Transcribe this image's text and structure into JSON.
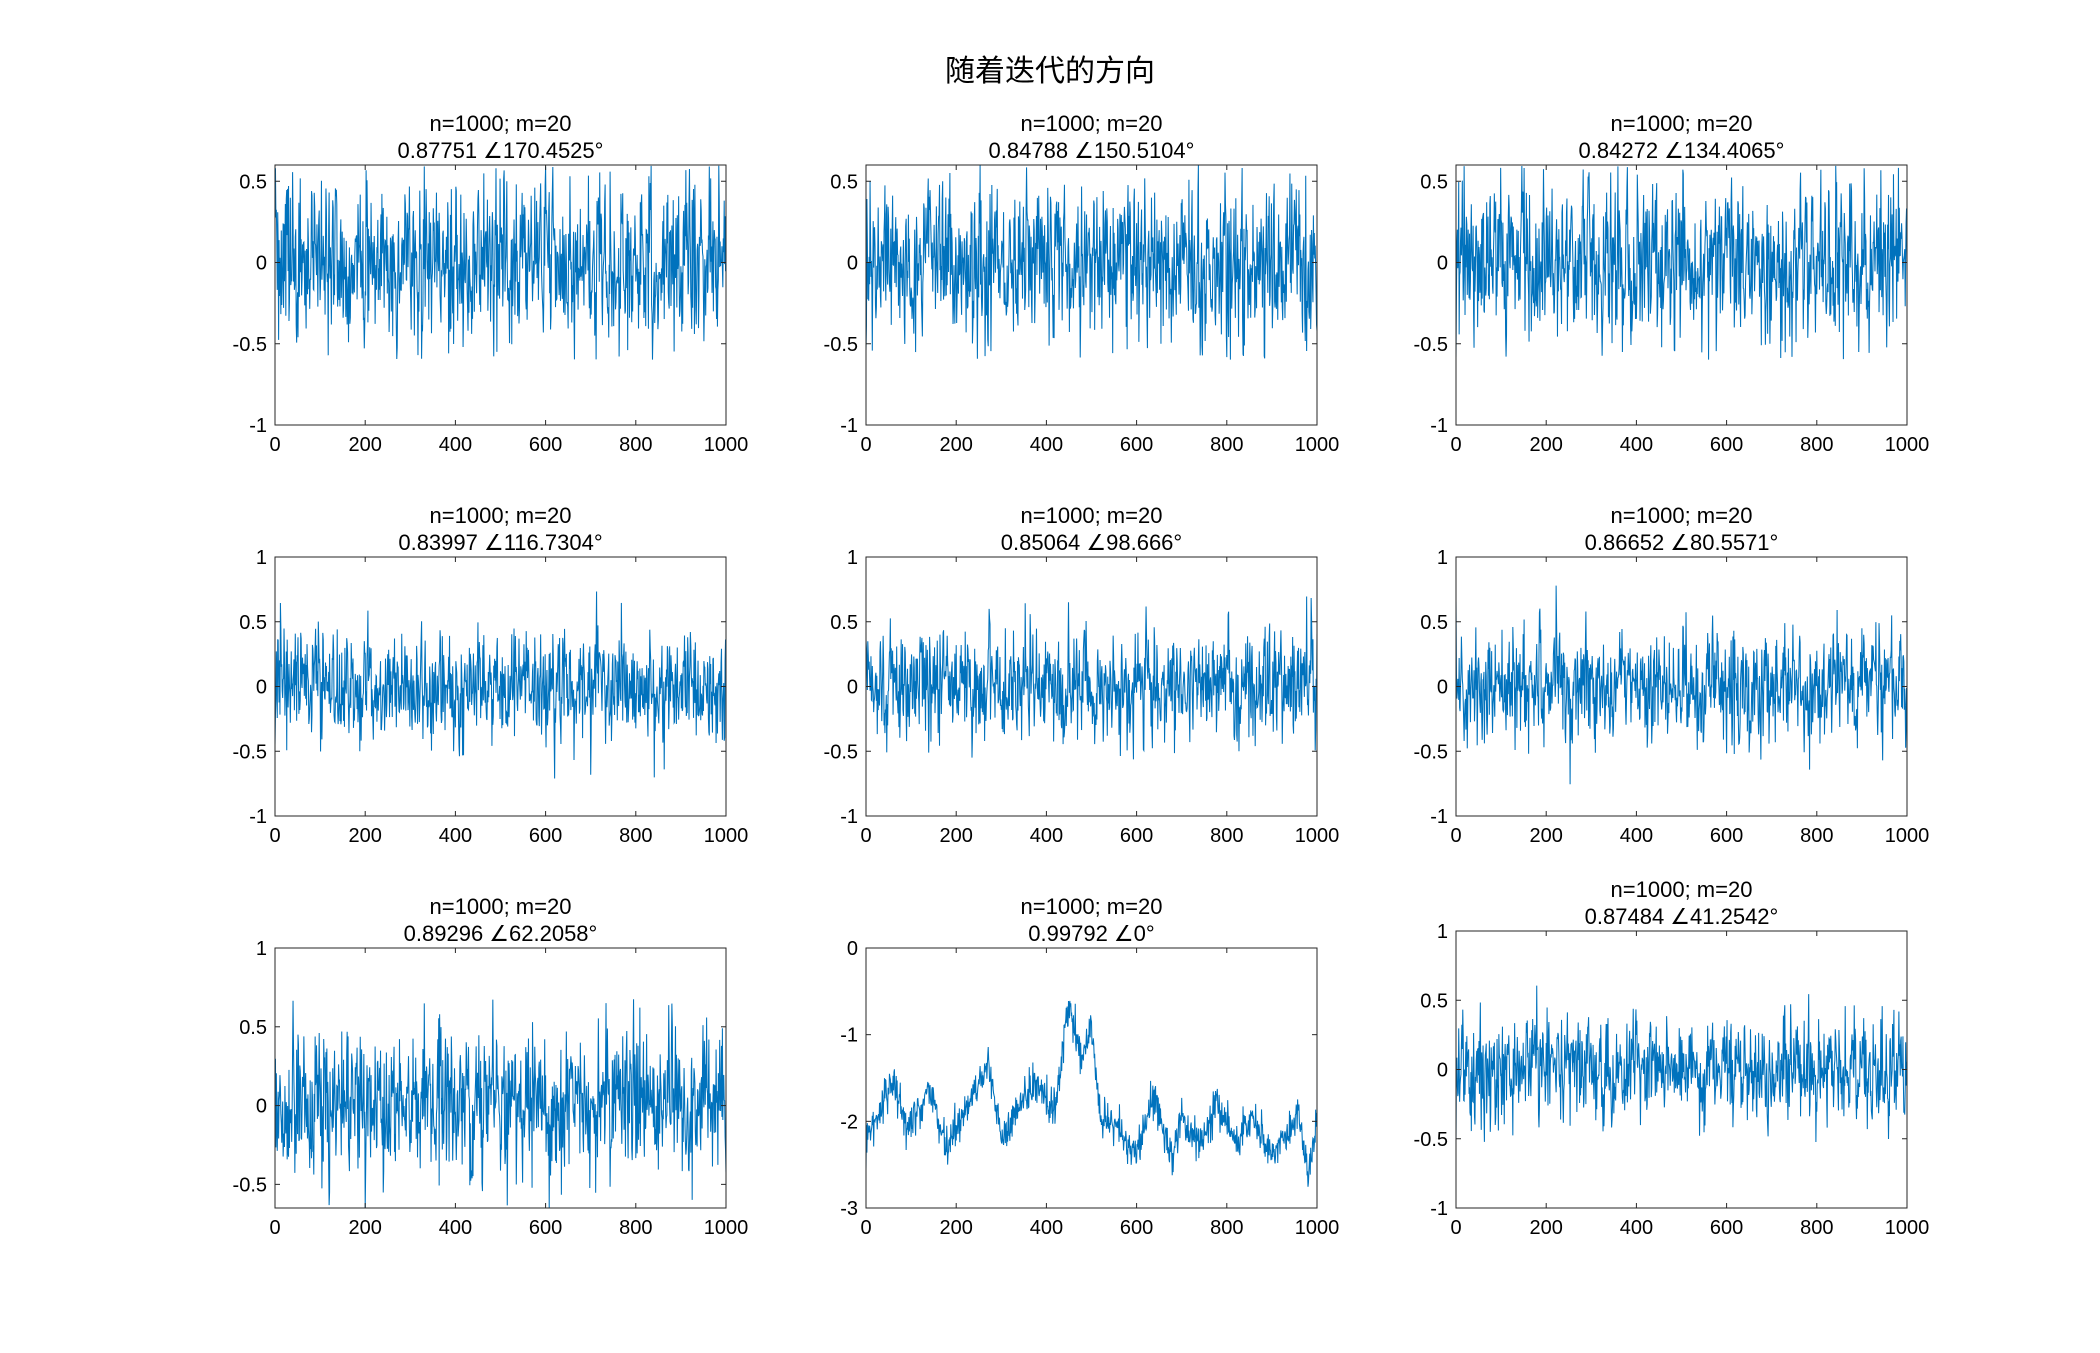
{
  "figure": {
    "suptitle": "随着迭代的方向",
    "line_color": "#0072BD"
  },
  "chart_data": [
    {
      "type": "line",
      "title_line1": "n=1000; m=20",
      "title_line2": "0.87751 ∠170.4525°",
      "xlim": [
        0,
        1000
      ],
      "ylim": [
        -1,
        0.6
      ],
      "xticks": [
        0,
        200,
        400,
        600,
        800,
        1000
      ],
      "yticks": [
        -1,
        -0.5,
        0,
        0.5
      ],
      "grid": false,
      "series_style": "noise",
      "noise_params": {
        "seed": 11,
        "amp": 0.6,
        "clip": 0.6,
        "mean": 0.0
      }
    },
    {
      "type": "line",
      "title_line1": "n=1000; m=20",
      "title_line2": "0.84788 ∠150.5104°",
      "xlim": [
        0,
        1000
      ],
      "ylim": [
        -1,
        0.6
      ],
      "xticks": [
        0,
        200,
        400,
        600,
        800,
        1000
      ],
      "yticks": [
        -1,
        -0.5,
        0,
        0.5
      ],
      "grid": false,
      "series_style": "noise",
      "noise_params": {
        "seed": 23,
        "amp": 0.55,
        "clip": 0.6,
        "mean": 0.0
      }
    },
    {
      "type": "line",
      "title_line1": "n=1000; m=20",
      "title_line2": "0.84272 ∠134.4065°",
      "xlim": [
        0,
        1000
      ],
      "ylim": [
        -1,
        0.6
      ],
      "xticks": [
        0,
        200,
        400,
        600,
        800,
        1000
      ],
      "yticks": [
        -1,
        -0.5,
        0,
        0.5
      ],
      "grid": false,
      "series_style": "noise",
      "noise_params": {
        "seed": 37,
        "amp": 0.55,
        "clip": 0.6,
        "mean": 0.0
      }
    },
    {
      "type": "line",
      "title_line1": "n=1000; m=20",
      "title_line2": "0.83997 ∠116.7304°",
      "xlim": [
        0,
        1000
      ],
      "ylim": [
        -1,
        1
      ],
      "xticks": [
        0,
        200,
        400,
        600,
        800,
        1000
      ],
      "yticks": [
        -1,
        -0.5,
        0,
        0.5,
        1
      ],
      "grid": false,
      "series_style": "noise",
      "noise_params": {
        "seed": 41,
        "amp": 0.5,
        "clip": 0.75,
        "mean": 0.0
      }
    },
    {
      "type": "line",
      "title_line1": "n=1000; m=20",
      "title_line2": "0.85064 ∠98.666°",
      "xlim": [
        0,
        1000
      ],
      "ylim": [
        -1,
        1
      ],
      "xticks": [
        0,
        200,
        400,
        600,
        800,
        1000
      ],
      "yticks": [
        -1,
        -0.5,
        0,
        0.5,
        1
      ],
      "grid": false,
      "series_style": "noise",
      "noise_params": {
        "seed": 53,
        "amp": 0.5,
        "clip": 0.72,
        "mean": 0.0
      }
    },
    {
      "type": "line",
      "title_line1": "n=1000; m=20",
      "title_line2": "0.86652 ∠80.5571°",
      "xlim": [
        0,
        1000
      ],
      "ylim": [
        -1,
        1
      ],
      "xticks": [
        0,
        200,
        400,
        600,
        800,
        1000
      ],
      "yticks": [
        -1,
        -0.5,
        0,
        0.5,
        1
      ],
      "grid": false,
      "series_style": "noise",
      "noise_params": {
        "seed": 67,
        "amp": 0.5,
        "clip": 0.78,
        "mean": 0.0
      }
    },
    {
      "type": "line",
      "title_line1": "n=1000; m=20",
      "title_line2": "0.89296 ∠62.2058°",
      "xlim": [
        0,
        1000
      ],
      "ylim": [
        -0.65,
        1
      ],
      "xticks": [
        0,
        200,
        400,
        600,
        800,
        1000
      ],
      "yticks": [
        -0.5,
        0,
        0.5,
        1
      ],
      "grid": false,
      "series_style": "noise",
      "noise_params": {
        "seed": 79,
        "amp": 0.55,
        "clip": 0.68,
        "mean": 0.0
      }
    },
    {
      "type": "line",
      "title_line1": "n=1000; m=20",
      "title_line2": "0.99792 ∠0°",
      "xlim": [
        0,
        1000
      ],
      "ylim": [
        -3,
        0
      ],
      "xticks": [
        0,
        200,
        400,
        600,
        800,
        1000
      ],
      "yticks": [
        -3,
        -2,
        -1,
        0
      ],
      "grid": false,
      "series_style": "walk",
      "walk_anchors": [
        [
          0,
          -2.2
        ],
        [
          30,
          -1.9
        ],
        [
          60,
          -1.5
        ],
        [
          90,
          -2.1
        ],
        [
          140,
          -1.6
        ],
        [
          180,
          -2.3
        ],
        [
          240,
          -1.7
        ],
        [
          270,
          -1.3
        ],
        [
          300,
          -2.2
        ],
        [
          340,
          -1.8
        ],
        [
          380,
          -1.6
        ],
        [
          420,
          -1.9
        ],
        [
          450,
          -0.6
        ],
        [
          480,
          -1.3
        ],
        [
          500,
          -0.9
        ],
        [
          520,
          -2.0
        ],
        [
          560,
          -2.1
        ],
        [
          600,
          -2.4
        ],
        [
          640,
          -1.7
        ],
        [
          680,
          -2.5
        ],
        [
          700,
          -1.9
        ],
        [
          740,
          -2.3
        ],
        [
          780,
          -1.8
        ],
        [
          820,
          -2.2
        ],
        [
          860,
          -2.0
        ],
        [
          900,
          -2.4
        ],
        [
          940,
          -2.1
        ],
        [
          960,
          -1.9
        ],
        [
          980,
          -2.6
        ],
        [
          1000,
          -2.0
        ]
      ],
      "walk_params": {
        "seed": 97,
        "noise": 0.11
      }
    },
    {
      "type": "line",
      "title_line1": "n=1000; m=20",
      "title_line2": "0.87484 ∠41.2542°",
      "xlim": [
        0,
        1000
      ],
      "ylim": [
        -1,
        1
      ],
      "xticks": [
        0,
        200,
        400,
        600,
        800,
        1000
      ],
      "yticks": [
        -1,
        -0.5,
        0,
        0.5,
        1
      ],
      "grid": false,
      "series_style": "noise",
      "noise_params": {
        "seed": 101,
        "amp": 0.45,
        "clip": 0.76,
        "mean": 0.0
      }
    }
  ]
}
